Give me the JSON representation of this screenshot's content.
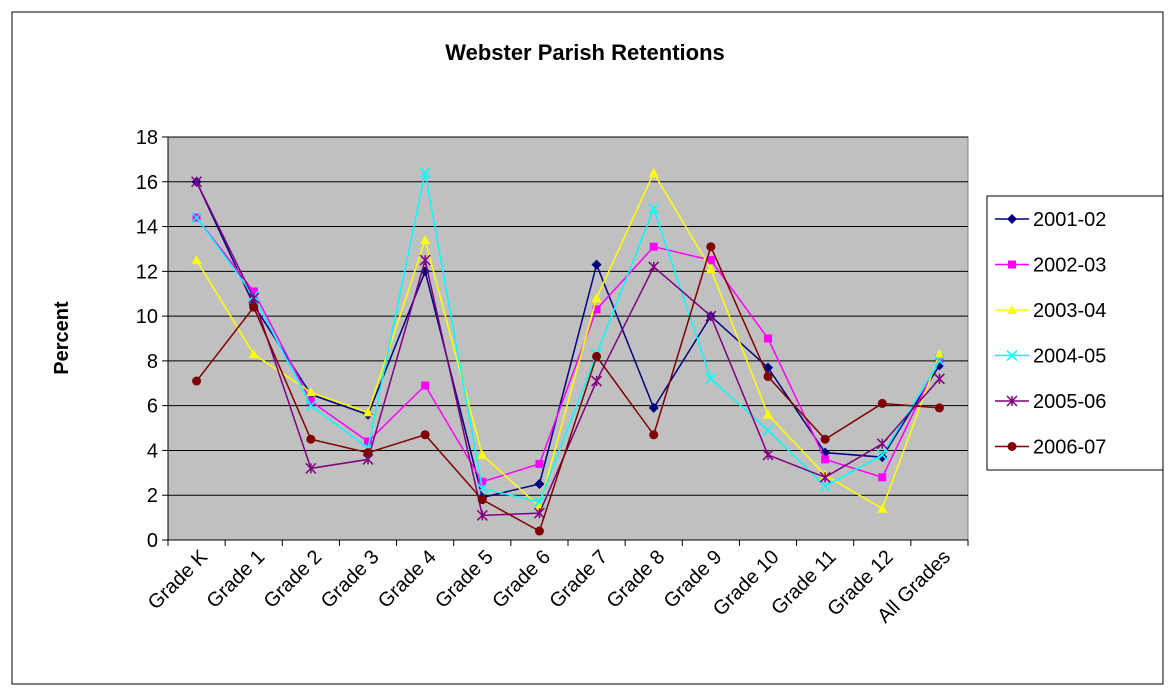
{
  "chart_data": {
    "type": "line",
    "title": "Webster Parish Retentions",
    "y_label": "Percent",
    "categories": [
      "Grade K",
      "Grade 1",
      "Grade 2",
      "Grade 3",
      "Grade 4",
      "Grade 5",
      "Grade 6",
      "Grade 7",
      "Grade 8",
      "Grade 9",
      "Grade 10",
      "Grade 11",
      "Grade 12",
      "All Grades"
    ],
    "series": [
      {
        "name": "2001-02",
        "color": "#000080",
        "marker": "diamond",
        "values": [
          16,
          10.5,
          6.5,
          5.6,
          12,
          1.9,
          2.5,
          12.3,
          5.9,
          10,
          7.7,
          3.9,
          3.7,
          7.8
        ]
      },
      {
        "name": "2002-03",
        "color": "#ff00ff",
        "marker": "square",
        "values": [
          14.4,
          11.1,
          6.2,
          4.4,
          6.9,
          2.6,
          3.4,
          10.3,
          13.1,
          12.5,
          9,
          3.6,
          2.8,
          8.1
        ]
      },
      {
        "name": "2003-04",
        "color": "#ffff00",
        "marker": "triangle",
        "values": [
          12.5,
          8.3,
          6.6,
          5.7,
          13.4,
          3.8,
          1.5,
          10.8,
          16.4,
          12.1,
          5.6,
          2.9,
          1.4,
          8.3
        ]
      },
      {
        "name": "2004-05",
        "color": "#00ffff",
        "marker": "x",
        "values": [
          14.4,
          10.9,
          6.0,
          4.1,
          16.4,
          2.3,
          1.7,
          8.3,
          14.8,
          7.2,
          4.9,
          2.4,
          3.8,
          8.0
        ]
      },
      {
        "name": "2005-06",
        "color": "#800080",
        "marker": "star",
        "values": [
          16,
          10.8,
          3.2,
          3.6,
          12.5,
          1.1,
          1.2,
          7.1,
          12.2,
          10,
          3.8,
          2.8,
          4.3,
          7.2
        ]
      },
      {
        "name": "2006-07",
        "color": "#800000",
        "marker": "circle",
        "values": [
          7.1,
          10.4,
          4.5,
          3.9,
          4.7,
          1.8,
          0.4,
          8.2,
          4.7,
          13.1,
          7.3,
          4.5,
          6.1,
          5.9
        ]
      }
    ],
    "ylim": [
      0,
      18
    ],
    "yticks": [
      0,
      2,
      4,
      6,
      8,
      10,
      12,
      14,
      16,
      18
    ],
    "grid": true,
    "plot_background": "#c0c0c0",
    "legend": "right"
  }
}
